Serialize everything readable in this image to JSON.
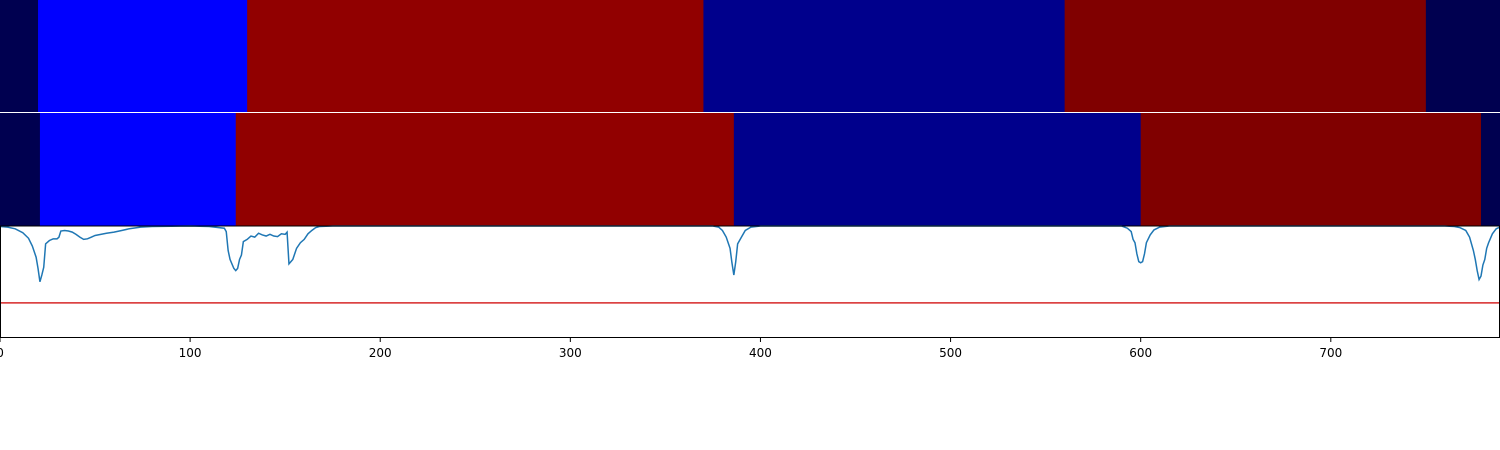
{
  "chart_data": [
    {
      "type": "heatmap",
      "segments": [
        {
          "x0": 0,
          "x1": 20,
          "color": "#000050"
        },
        {
          "x0": 20,
          "x1": 130,
          "color": "#0000FF"
        },
        {
          "x0": 130,
          "x1": 370,
          "color": "#910000"
        },
        {
          "x0": 370,
          "x1": 560,
          "color": "#00008C"
        },
        {
          "x0": 560,
          "x1": 750,
          "color": "#800000"
        },
        {
          "x0": 750,
          "x1": 789,
          "color": "#000050"
        }
      ]
    },
    {
      "type": "heatmap",
      "segments": [
        {
          "x0": 0,
          "x1": 21,
          "color": "#000050"
        },
        {
          "x0": 21,
          "x1": 124,
          "color": "#0000FF"
        },
        {
          "x0": 124,
          "x1": 386,
          "color": "#910000"
        },
        {
          "x0": 386,
          "x1": 600,
          "color": "#00008C"
        },
        {
          "x0": 600,
          "x1": 779,
          "color": "#800000"
        },
        {
          "x0": 779,
          "x1": 789,
          "color": "#000050"
        }
      ]
    },
    {
      "type": "line",
      "xlim": [
        0,
        789
      ],
      "ylim": [
        0,
        1
      ],
      "xticks": [
        0,
        100,
        200,
        300,
        400,
        500,
        600,
        700
      ],
      "threshold": {
        "y": 0.31,
        "color": "#D62728"
      },
      "series": [
        {
          "color": "#1F77B4",
          "points": [
            [
              0,
              0.995
            ],
            [
              4,
              0.99
            ],
            [
              8,
              0.975
            ],
            [
              12,
              0.94
            ],
            [
              15,
              0.89
            ],
            [
              17,
              0.82
            ],
            [
              19,
              0.72
            ],
            [
              20,
              0.62
            ],
            [
              21,
              0.5
            ],
            [
              22,
              0.56
            ],
            [
              23,
              0.63
            ],
            [
              24,
              0.84
            ],
            [
              26,
              0.87
            ],
            [
              28,
              0.885
            ],
            [
              30,
              0.885
            ],
            [
              31,
              0.9
            ],
            [
              32,
              0.955
            ],
            [
              34,
              0.96
            ],
            [
              36,
              0.955
            ],
            [
              38,
              0.945
            ],
            [
              40,
              0.925
            ],
            [
              42,
              0.9
            ],
            [
              44,
              0.88
            ],
            [
              46,
              0.885
            ],
            [
              48,
              0.9
            ],
            [
              50,
              0.915
            ],
            [
              53,
              0.925
            ],
            [
              56,
              0.935
            ],
            [
              60,
              0.945
            ],
            [
              64,
              0.96
            ],
            [
              68,
              0.975
            ],
            [
              74,
              0.99
            ],
            [
              80,
              0.995
            ],
            [
              100,
              1.0
            ],
            [
              110,
              0.995
            ],
            [
              118,
              0.98
            ],
            [
              119,
              0.95
            ],
            [
              120,
              0.78
            ],
            [
              121,
              0.7
            ],
            [
              122,
              0.66
            ],
            [
              123,
              0.62
            ],
            [
              124,
              0.6
            ],
            [
              125,
              0.62
            ],
            [
              126,
              0.7
            ],
            [
              127,
              0.74
            ],
            [
              128,
              0.86
            ],
            [
              130,
              0.88
            ],
            [
              132,
              0.91
            ],
            [
              134,
              0.9
            ],
            [
              136,
              0.935
            ],
            [
              138,
              0.92
            ],
            [
              140,
              0.91
            ],
            [
              142,
              0.925
            ],
            [
              144,
              0.91
            ],
            [
              146,
              0.905
            ],
            [
              148,
              0.93
            ],
            [
              150,
              0.925
            ],
            [
              151,
              0.945
            ],
            [
              152,
              0.66
            ],
            [
              154,
              0.7
            ],
            [
              155,
              0.75
            ],
            [
              156,
              0.8
            ],
            [
              158,
              0.85
            ],
            [
              160,
              0.88
            ],
            [
              162,
              0.93
            ],
            [
              164,
              0.96
            ],
            [
              166,
              0.985
            ],
            [
              168,
              0.995
            ],
            [
              175,
              1.0
            ],
            [
              300,
              1.0
            ],
            [
              375,
              1.0
            ],
            [
              378,
              0.99
            ],
            [
              380,
              0.96
            ],
            [
              382,
              0.9
            ],
            [
              383,
              0.85
            ],
            [
              384,
              0.8
            ],
            [
              385,
              0.67
            ],
            [
              386,
              0.56
            ],
            [
              387,
              0.68
            ],
            [
              388,
              0.84
            ],
            [
              390,
              0.9
            ],
            [
              392,
              0.96
            ],
            [
              395,
              0.99
            ],
            [
              400,
              1.0
            ],
            [
              590,
              1.0
            ],
            [
              593,
              0.98
            ],
            [
              595,
              0.95
            ],
            [
              596,
              0.88
            ],
            [
              597,
              0.85
            ],
            [
              598,
              0.75
            ],
            [
              599,
              0.68
            ],
            [
              600,
              0.67
            ],
            [
              601,
              0.68
            ],
            [
              602,
              0.75
            ],
            [
              603,
              0.85
            ],
            [
              605,
              0.92
            ],
            [
              607,
              0.965
            ],
            [
              610,
              0.99
            ],
            [
              615,
              1.0
            ],
            [
              760,
              1.0
            ],
            [
              765,
              0.995
            ],
            [
              768,
              0.985
            ],
            [
              771,
              0.96
            ],
            [
              773,
              0.9
            ],
            [
              775,
              0.78
            ],
            [
              776,
              0.7
            ],
            [
              777,
              0.6
            ],
            [
              778,
              0.52
            ],
            [
              779,
              0.55
            ],
            [
              780,
              0.65
            ],
            [
              781,
              0.7
            ],
            [
              782,
              0.8
            ],
            [
              783,
              0.85
            ],
            [
              785,
              0.93
            ],
            [
              787,
              0.975
            ],
            [
              789,
              0.99
            ]
          ]
        }
      ]
    }
  ]
}
